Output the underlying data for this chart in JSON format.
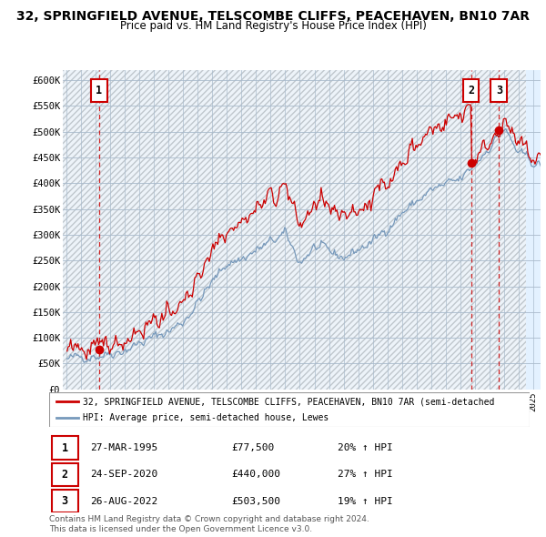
{
  "title": "32, SPRINGFIELD AVENUE, TELSCOMBE CLIFFS, PEACEHAVEN, BN10 7AR",
  "subtitle": "Price paid vs. HM Land Registry's House Price Index (HPI)",
  "ylim": [
    0,
    620000
  ],
  "xlim_start": 1992.75,
  "xlim_end": 2025.5,
  "yticks": [
    0,
    50000,
    100000,
    150000,
    200000,
    250000,
    300000,
    350000,
    400000,
    450000,
    500000,
    550000,
    600000
  ],
  "ytick_labels": [
    "£0",
    "£50K",
    "£100K",
    "£150K",
    "£200K",
    "£250K",
    "£300K",
    "£350K",
    "£400K",
    "£450K",
    "£500K",
    "£550K",
    "£600K"
  ],
  "sales": [
    {
      "num": 1,
      "year": 1995.23,
      "price": 77500,
      "label": "27-MAR-1995",
      "price_str": "£77,500",
      "hpi_str": "20% ↑ HPI"
    },
    {
      "num": 2,
      "year": 2020.73,
      "price": 440000,
      "label": "24-SEP-2020",
      "price_str": "£440,000",
      "hpi_str": "27% ↑ HPI"
    },
    {
      "num": 3,
      "year": 2022.65,
      "price": 503500,
      "label": "26-AUG-2022",
      "price_str": "£503,500",
      "hpi_str": "19% ↑ HPI"
    }
  ],
  "legend_line1": "32, SPRINGFIELD AVENUE, TELSCOMBE CLIFFS, PEACEHAVEN, BN10 7AR (semi-detached",
  "legend_line2": "HPI: Average price, semi-detached house, Lewes",
  "footer1": "Contains HM Land Registry data © Crown copyright and database right 2024.",
  "footer2": "This data is licensed under the Open Government Licence v3.0.",
  "line_color_red": "#cc0000",
  "line_color_blue": "#7799bb",
  "future_cutoff": 2024.5,
  "title_fontsize": 10.5,
  "subtitle_fontsize": 9
}
